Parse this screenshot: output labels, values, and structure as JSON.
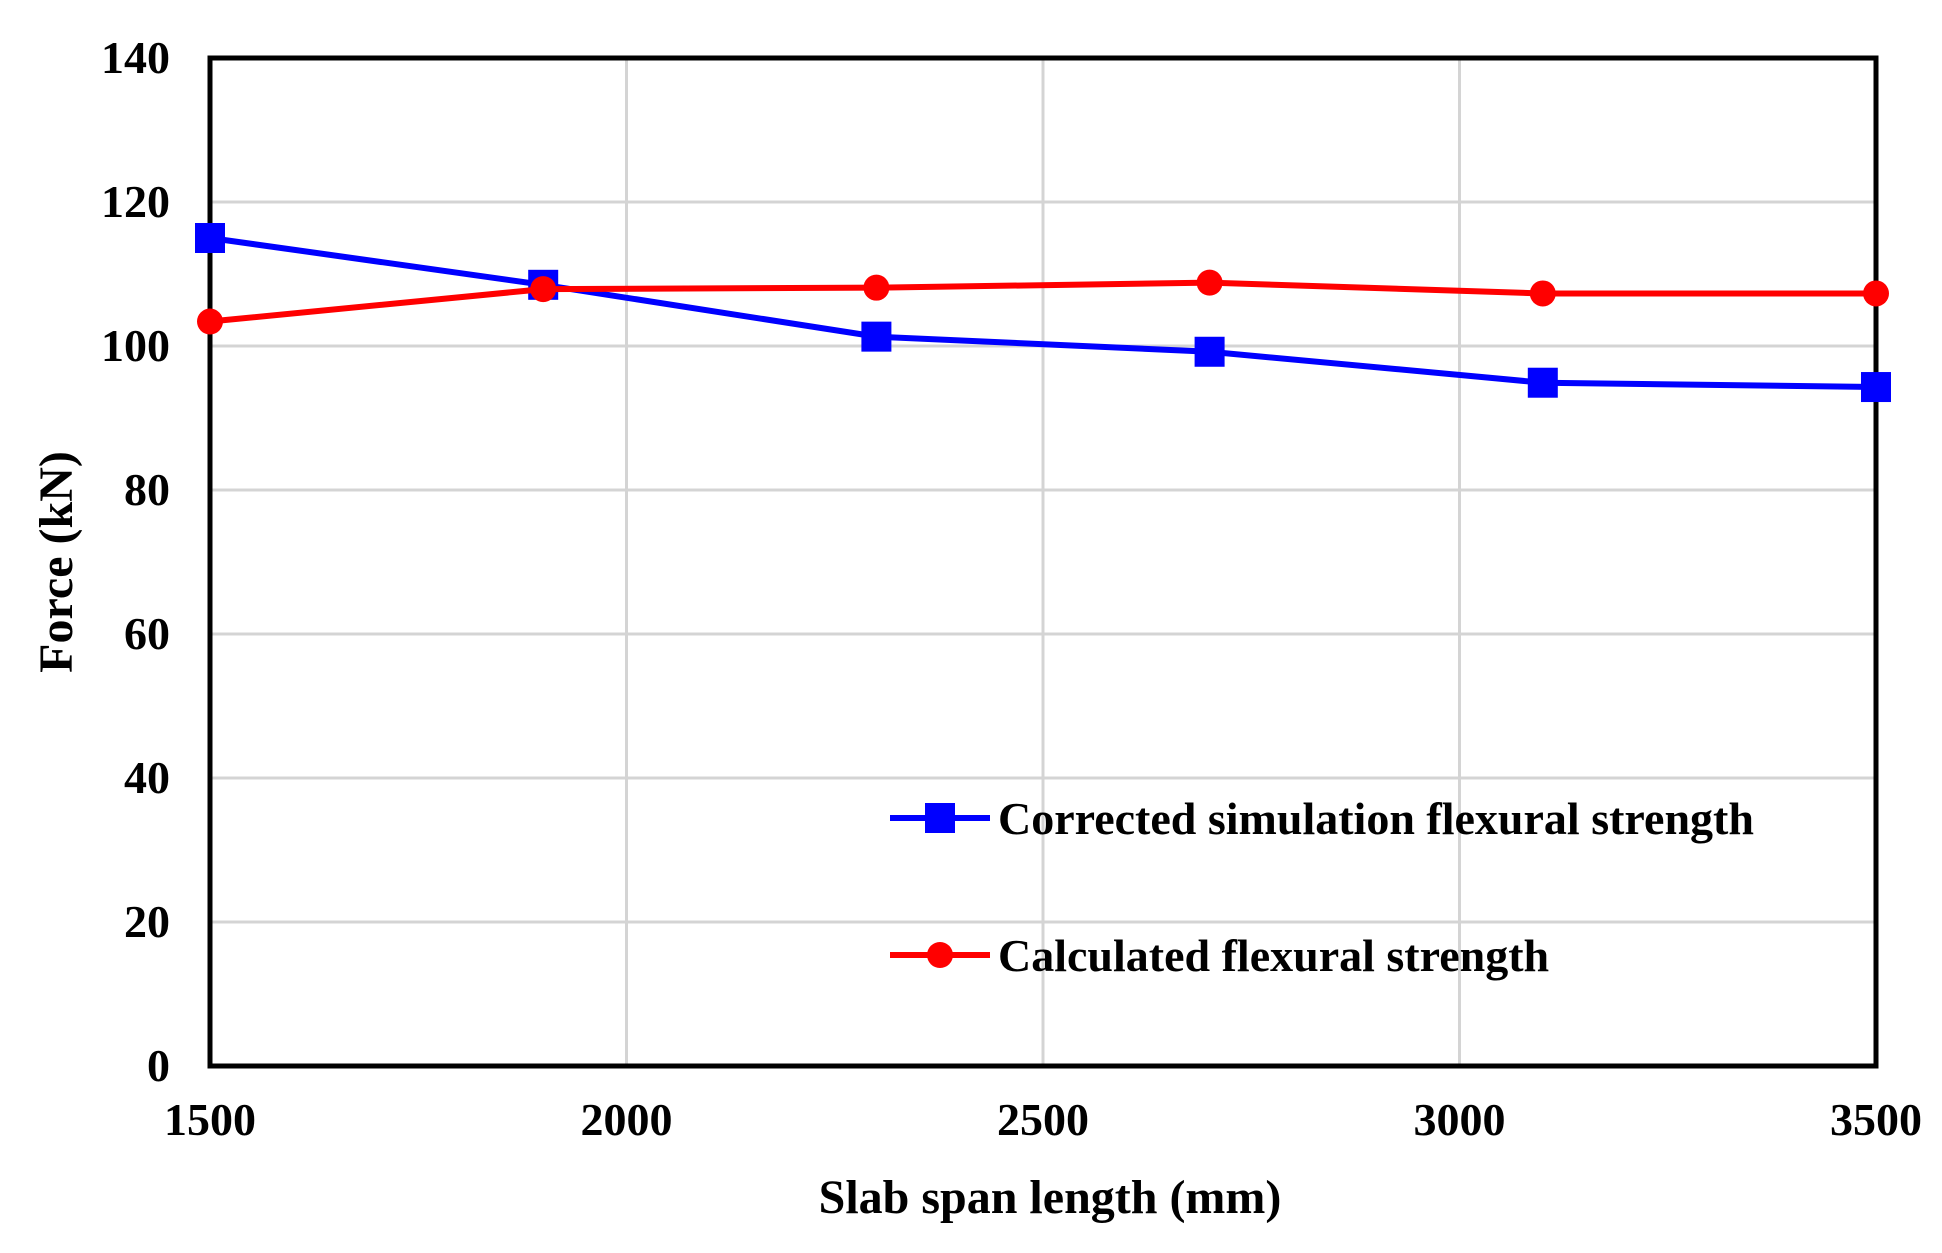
{
  "chart_data": {
    "type": "line",
    "title": "",
    "xlabel": "Slab span length (mm)",
    "ylabel": "Force (kN)",
    "xlim": [
      1500,
      3500
    ],
    "ylim": [
      0,
      140
    ],
    "xticks": [
      1500,
      2000,
      2500,
      3000,
      3500
    ],
    "yticks": [
      0,
      20,
      40,
      60,
      80,
      100,
      120,
      140
    ],
    "grid": true,
    "legend_position": "bottom-right",
    "series": [
      {
        "name": "Corrected simulation flexural strength",
        "color": "#0000ff",
        "marker": "square",
        "x": [
          1500,
          1900,
          2300,
          2700,
          3100,
          3500
        ],
        "y": [
          115,
          108.5,
          101.3,
          99.2,
          94.9,
          94.3
        ]
      },
      {
        "name": "Calculated flexural strength",
        "color": "#ff0000",
        "marker": "circle",
        "x": [
          1500,
          1900,
          2300,
          2700,
          3100,
          3500
        ],
        "y": [
          103.4,
          107.9,
          108.1,
          108.8,
          107.3,
          107.3
        ]
      }
    ]
  }
}
